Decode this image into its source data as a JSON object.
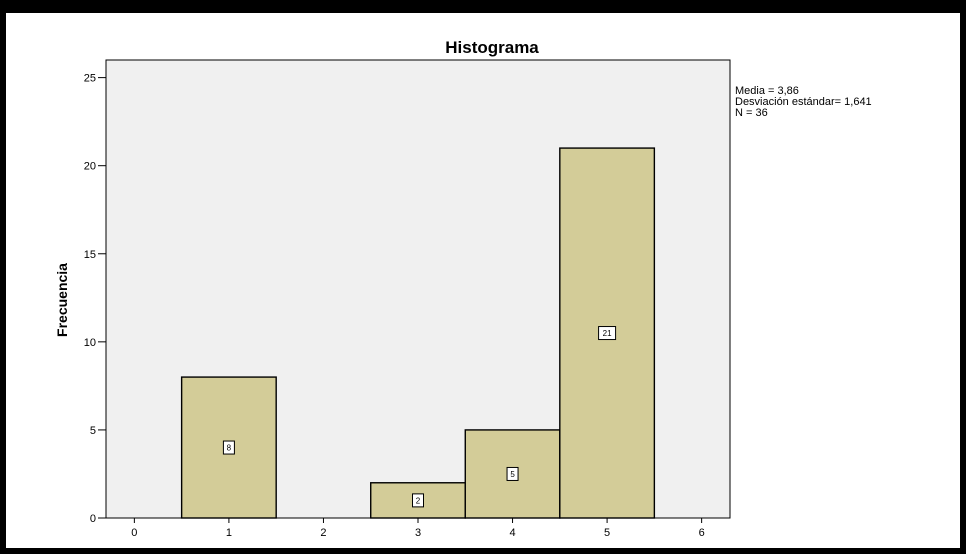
{
  "chart_data": {
    "type": "bar",
    "title": "Histograma",
    "xlabel": "",
    "ylabel": "Frecuencia",
    "categories": [
      "1",
      "3",
      "4",
      "5"
    ],
    "x": [
      1,
      3,
      4,
      5
    ],
    "values": [
      8,
      2,
      5,
      21
    ],
    "bar_labels": [
      "8",
      "2",
      "5",
      "21"
    ],
    "xlim": [
      -0.3,
      6.3
    ],
    "ylim": [
      0,
      26
    ],
    "x_ticks": [
      0,
      1,
      2,
      3,
      4,
      5,
      6
    ],
    "y_ticks": [
      0,
      5,
      10,
      15,
      20,
      25
    ],
    "grid": false,
    "bar_color": "#d3cc98",
    "plot_background": "#f0f0f0",
    "stats": {
      "mean": "Media = 3,86",
      "std": "Desviación estándar= 1,641",
      "n": "N = 36"
    }
  }
}
